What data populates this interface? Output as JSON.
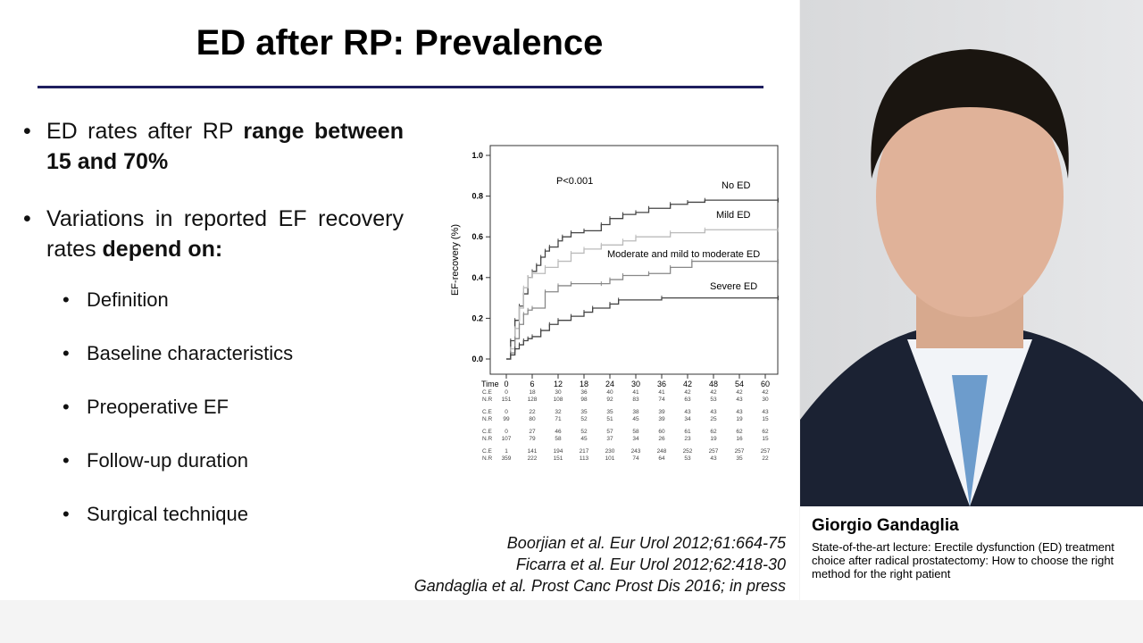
{
  "slide": {
    "title": "ED after RP: Prevalence",
    "bullets": [
      {
        "pre": "ED rates after RP ",
        "bold": "range between 15 and 70%"
      },
      {
        "pre": "Variations in reported EF recovery rates ",
        "bold": "depend on:"
      }
    ],
    "sub_bullets": [
      "Definition",
      "Baseline characteristics",
      "Preoperative EF",
      "Follow-up duration",
      "Surgical technique"
    ],
    "references": [
      "Boorjian et al. Eur Urol 2012;61:664-75",
      "Ficarra et al. Eur Urol 2012;62:418-30",
      "Gandaglia et al. Prost Canc Prost Dis 2016; in press"
    ]
  },
  "speaker": {
    "name": "Giorgio Gandaglia",
    "lecture": "State-of-the-art lecture: Erectile dysfunction (ED) treatment choice after radical prostatectomy: How to choose the right method for the right patient"
  },
  "chart_data": {
    "type": "line",
    "ylabel": "EF-recovery (%)",
    "annotation": "P<0.001",
    "xlim": [
      0,
      63
    ],
    "ylim": [
      0,
      1
    ],
    "yticks": [
      "0.0",
      "0.2",
      "0.4",
      "0.6",
      "0.8",
      "1.0"
    ],
    "table": {
      "time_label": "Time",
      "times": [
        0,
        6,
        12,
        18,
        24,
        30,
        36,
        42,
        48,
        54,
        60
      ],
      "rows": [
        {
          "label": "C.E",
          "values": [
            0,
            18,
            30,
            36,
            40,
            41,
            41,
            42,
            42,
            42,
            42
          ]
        },
        {
          "label": "N.R",
          "values": [
            151,
            128,
            108,
            98,
            92,
            83,
            74,
            63,
            53,
            43,
            30
          ]
        },
        {
          "label": "C.E",
          "values": [
            0,
            22,
            32,
            35,
            35,
            38,
            39,
            43,
            43,
            43,
            43
          ]
        },
        {
          "label": "N.R",
          "values": [
            99,
            80,
            71,
            52,
            51,
            45,
            39,
            34,
            25,
            19,
            15
          ]
        },
        {
          "label": "C.E",
          "values": [
            0,
            27,
            46,
            52,
            57,
            58,
            60,
            61,
            62,
            62,
            62
          ]
        },
        {
          "label": "N.R",
          "values": [
            107,
            79,
            58,
            45,
            37,
            34,
            26,
            23,
            19,
            16,
            15
          ]
        },
        {
          "label": "C.E",
          "values": [
            1,
            141,
            194,
            217,
            230,
            243,
            248,
            252,
            257,
            257,
            257
          ]
        },
        {
          "label": "N.R",
          "values": [
            359,
            222,
            151,
            113,
            101,
            74,
            64,
            53,
            43,
            35,
            22
          ]
        }
      ]
    },
    "series": [
      {
        "name": "No ED",
        "color": "#444444",
        "points": [
          [
            0,
            0
          ],
          [
            1,
            0.09
          ],
          [
            2,
            0.19
          ],
          [
            3,
            0.26
          ],
          [
            4,
            0.32
          ],
          [
            5,
            0.4
          ],
          [
            6,
            0.43
          ],
          [
            7,
            0.46
          ],
          [
            8,
            0.5
          ],
          [
            9,
            0.53
          ],
          [
            10,
            0.55
          ],
          [
            12,
            0.58
          ],
          [
            13,
            0.6
          ],
          [
            15,
            0.62
          ],
          [
            18,
            0.63
          ],
          [
            22,
            0.66
          ],
          [
            24,
            0.69
          ],
          [
            27,
            0.71
          ],
          [
            30,
            0.72
          ],
          [
            33,
            0.74
          ],
          [
            38,
            0.76
          ],
          [
            42,
            0.77
          ],
          [
            46,
            0.78
          ],
          [
            63,
            0.78
          ]
        ]
      },
      {
        "name": "Mild ED",
        "color": "#bbbbbb",
        "points": [
          [
            0,
            0
          ],
          [
            1,
            0.05
          ],
          [
            2,
            0.15
          ],
          [
            3,
            0.25
          ],
          [
            4,
            0.35
          ],
          [
            5,
            0.4
          ],
          [
            6,
            0.42
          ],
          [
            9,
            0.45
          ],
          [
            12,
            0.48
          ],
          [
            15,
            0.52
          ],
          [
            18,
            0.54
          ],
          [
            22,
            0.56
          ],
          [
            27,
            0.58
          ],
          [
            30,
            0.6
          ],
          [
            38,
            0.62
          ],
          [
            46,
            0.635
          ],
          [
            63,
            0.635
          ]
        ]
      },
      {
        "name": "Moderate and mild to moderate ED",
        "color": "#888888",
        "points": [
          [
            0,
            0
          ],
          [
            1,
            0.03
          ],
          [
            2,
            0.1
          ],
          [
            3,
            0.17
          ],
          [
            4,
            0.22
          ],
          [
            5,
            0.24
          ],
          [
            6,
            0.25
          ],
          [
            9,
            0.33
          ],
          [
            12,
            0.36
          ],
          [
            15,
            0.37
          ],
          [
            22,
            0.37
          ],
          [
            24,
            0.39
          ],
          [
            27,
            0.41
          ],
          [
            33,
            0.42
          ],
          [
            38,
            0.45
          ],
          [
            43,
            0.48
          ],
          [
            63,
            0.48
          ]
        ]
      },
      {
        "name": "Severe ED",
        "color": "#444444",
        "points": [
          [
            0,
            0
          ],
          [
            1,
            0.02
          ],
          [
            2,
            0.05
          ],
          [
            3,
            0.07
          ],
          [
            4,
            0.09
          ],
          [
            5,
            0.1
          ],
          [
            6,
            0.11
          ],
          [
            8,
            0.14
          ],
          [
            10,
            0.17
          ],
          [
            12,
            0.19
          ],
          [
            15,
            0.21
          ],
          [
            18,
            0.23
          ],
          [
            20,
            0.25
          ],
          [
            24,
            0.27
          ],
          [
            26,
            0.29
          ],
          [
            36,
            0.3
          ],
          [
            63,
            0.3
          ]
        ]
      }
    ]
  }
}
